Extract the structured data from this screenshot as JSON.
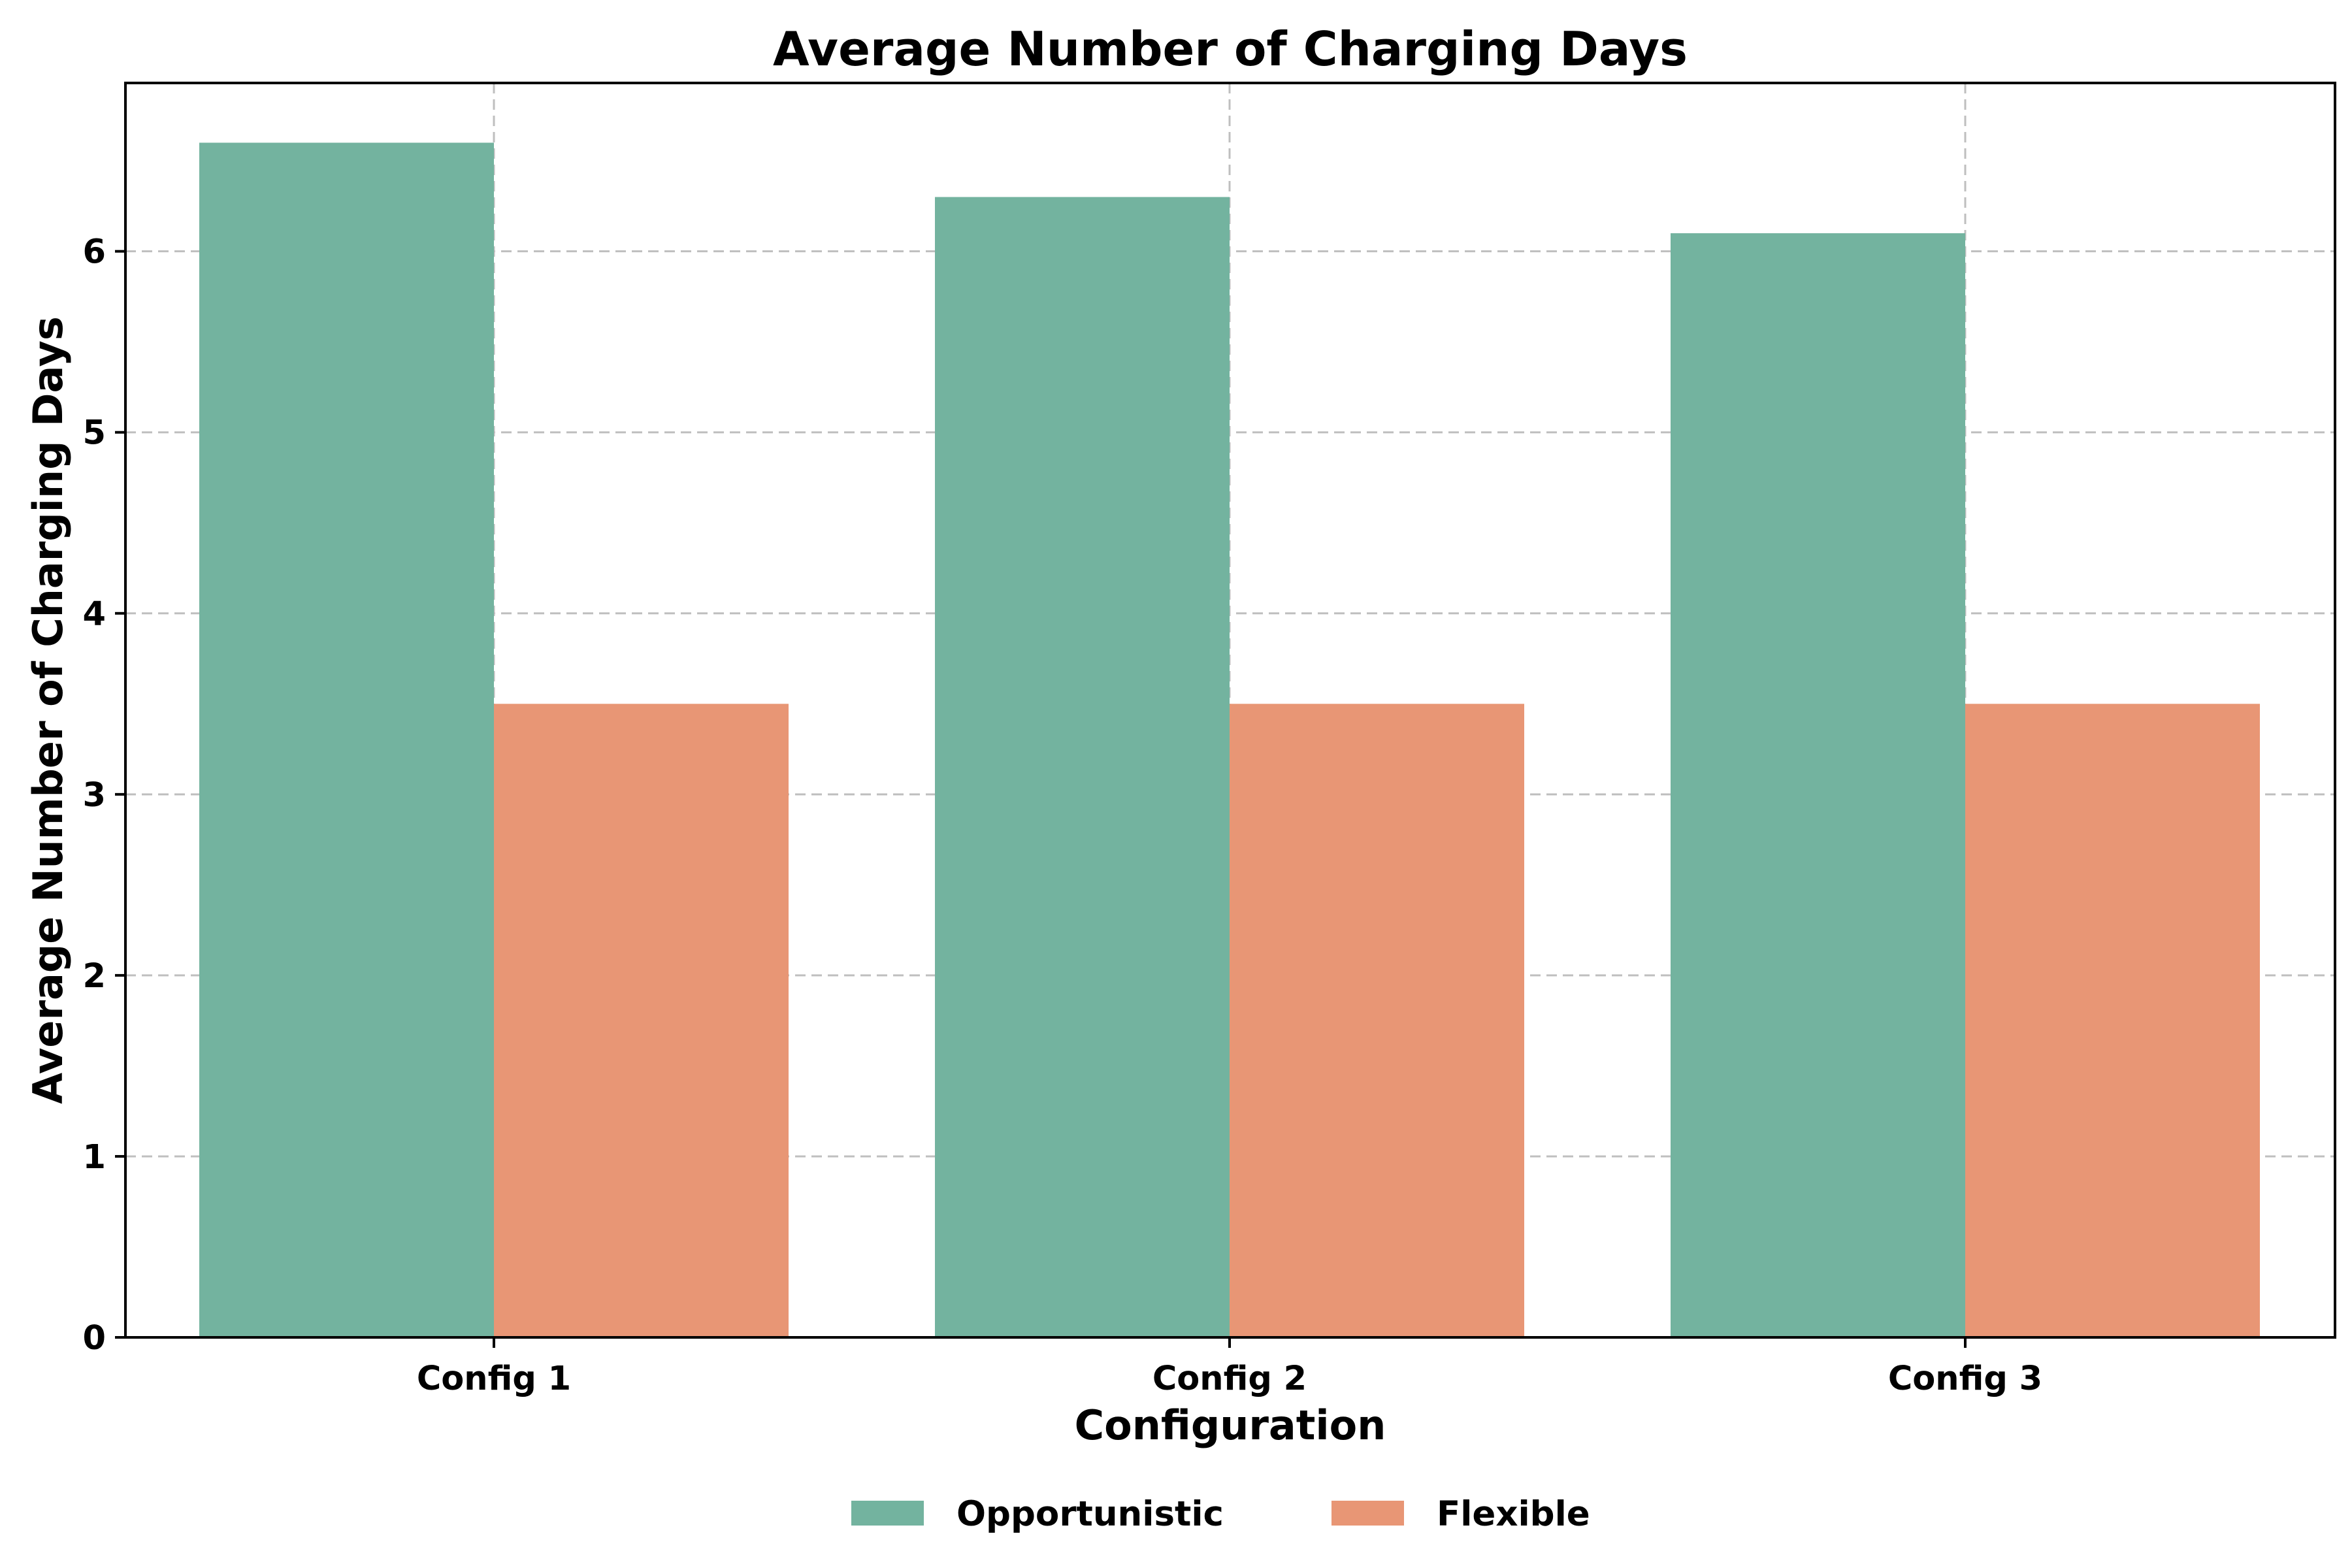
{
  "chart_data": {
    "type": "bar",
    "title": "Average Number of Charging Days",
    "xlabel": "Configuration",
    "ylabel": "Average Number of Charging Days",
    "categories": [
      "Config 1",
      "Config 2",
      "Config 3"
    ],
    "series": [
      {
        "name": "Opportunistic",
        "values": [
          6.6,
          6.3,
          6.1
        ],
        "color": "#73b39f"
      },
      {
        "name": "Flexible",
        "values": [
          3.5,
          3.5,
          3.5
        ],
        "color": "#e89675"
      }
    ],
    "ylim": [
      0,
      6.93
    ],
    "yticks": [
      "0",
      "1",
      "2",
      "3",
      "4",
      "5",
      "6"
    ],
    "grid": true,
    "grid_style": "dashed",
    "legend_placement": "bottom-center"
  }
}
